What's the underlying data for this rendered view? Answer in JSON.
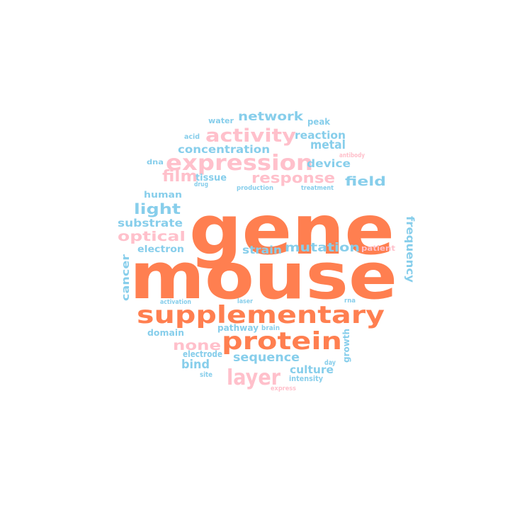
{
  "colors": {
    "orange": "#ff7f50",
    "pink": "#ffc0cb",
    "blue": "#87ceeb"
  },
  "words": [
    {
      "text": "gene",
      "color": "orange"
    },
    {
      "text": "mouse",
      "color": "orange"
    },
    {
      "text": "supplementary",
      "color": "orange"
    },
    {
      "text": "protein",
      "color": "orange"
    },
    {
      "text": "expression",
      "color": "pink"
    },
    {
      "text": "activity",
      "color": "pink"
    },
    {
      "text": "layer",
      "color": "pink"
    },
    {
      "text": "response",
      "color": "pink"
    },
    {
      "text": "film",
      "color": "pink"
    },
    {
      "text": "optical",
      "color": "pink"
    },
    {
      "text": "none",
      "color": "pink"
    },
    {
      "text": "network",
      "color": "blue"
    },
    {
      "text": "reaction",
      "color": "blue"
    },
    {
      "text": "concentration",
      "color": "blue"
    },
    {
      "text": "metal",
      "color": "blue"
    },
    {
      "text": "device",
      "color": "blue"
    },
    {
      "text": "field",
      "color": "blue"
    },
    {
      "text": "light",
      "color": "blue"
    },
    {
      "text": "substrate",
      "color": "blue"
    },
    {
      "text": "mutation",
      "color": "blue"
    },
    {
      "text": "strain",
      "color": "blue"
    },
    {
      "text": "sequence",
      "color": "blue"
    },
    {
      "text": "bind",
      "color": "blue"
    },
    {
      "text": "culture",
      "color": "blue"
    },
    {
      "text": "frequency",
      "color": "blue"
    },
    {
      "text": "cancer",
      "color": "blue"
    },
    {
      "text": "electron",
      "color": "blue"
    },
    {
      "text": "human",
      "color": "blue"
    },
    {
      "text": "tissue",
      "color": "blue"
    },
    {
      "text": "water",
      "color": "blue"
    },
    {
      "text": "peak",
      "color": "blue"
    },
    {
      "text": "acid",
      "color": "blue"
    },
    {
      "text": "dna",
      "color": "blue"
    },
    {
      "text": "antibody",
      "color": "pink"
    },
    {
      "text": "drug",
      "color": "blue"
    },
    {
      "text": "production",
      "color": "blue"
    },
    {
      "text": "treatment",
      "color": "blue"
    },
    {
      "text": "patient",
      "color": "pink"
    },
    {
      "text": "activation",
      "color": "blue"
    },
    {
      "text": "laser",
      "color": "blue"
    },
    {
      "text": "rna",
      "color": "blue"
    },
    {
      "text": "domain",
      "color": "blue"
    },
    {
      "text": "pathway",
      "color": "blue"
    },
    {
      "text": "brain",
      "color": "blue"
    },
    {
      "text": "growth",
      "color": "blue"
    },
    {
      "text": "electrode",
      "color": "blue"
    },
    {
      "text": "day",
      "color": "blue"
    },
    {
      "text": "site",
      "color": "blue"
    },
    {
      "text": "intensity",
      "color": "blue"
    },
    {
      "text": "express",
      "color": "pink"
    }
  ]
}
